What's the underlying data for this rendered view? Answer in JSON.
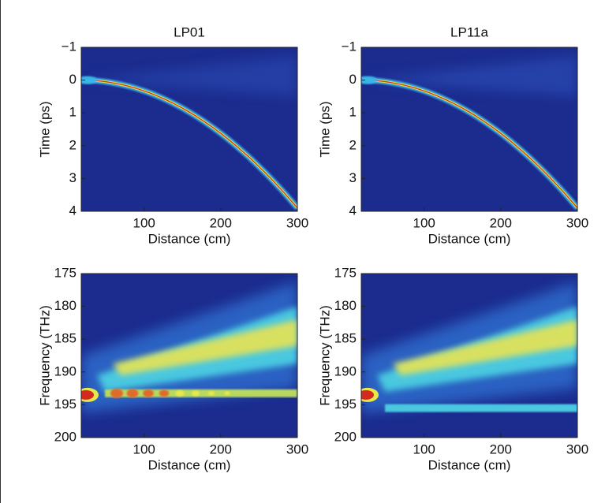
{
  "chart_data": [
    {
      "type": "heatmap",
      "title": "LP01",
      "xlabel": "Distance (cm)",
      "ylabel": "Time (ps)",
      "kind": "time",
      "xlim": [
        18,
        300
      ],
      "xticks": [
        100,
        200,
        300
      ],
      "ylim": [
        -1,
        4
      ],
      "y_inverted": true,
      "yticks": [
        {
          "value": -1,
          "label": "−1"
        },
        0,
        1,
        2,
        3,
        4
      ]
    },
    {
      "type": "heatmap",
      "title": "LP11a",
      "xlabel": "Distance (cm)",
      "ylabel": "Time (ps)",
      "kind": "time",
      "xlim": [
        18,
        300
      ],
      "xticks": [
        100,
        200,
        300
      ],
      "ylim": [
        -1,
        4
      ],
      "y_inverted": true,
      "yticks": [
        {
          "value": -1,
          "label": "−1"
        },
        0,
        1,
        2,
        3,
        4
      ]
    },
    {
      "type": "heatmap",
      "xlabel": "Distance (cm)",
      "ylabel": "Frequency (THz)",
      "kind": "freq",
      "xlim": [
        18,
        300
      ],
      "xticks": [
        100,
        200,
        300
      ],
      "ylim": [
        175,
        200
      ],
      "y_inverted": true,
      "yticks": [
        175,
        180,
        185,
        190,
        195,
        200
      ]
    },
    {
      "type": "heatmap",
      "xlabel": "Distance (cm)",
      "ylabel": "Frequency (THz)",
      "kind": "freq",
      "xlim": [
        18,
        300
      ],
      "xticks": [
        100,
        200,
        300
      ],
      "ylim": [
        175,
        200
      ],
      "y_inverted": true,
      "yticks": [
        175,
        180,
        185,
        190,
        195,
        200
      ]
    }
  ]
}
